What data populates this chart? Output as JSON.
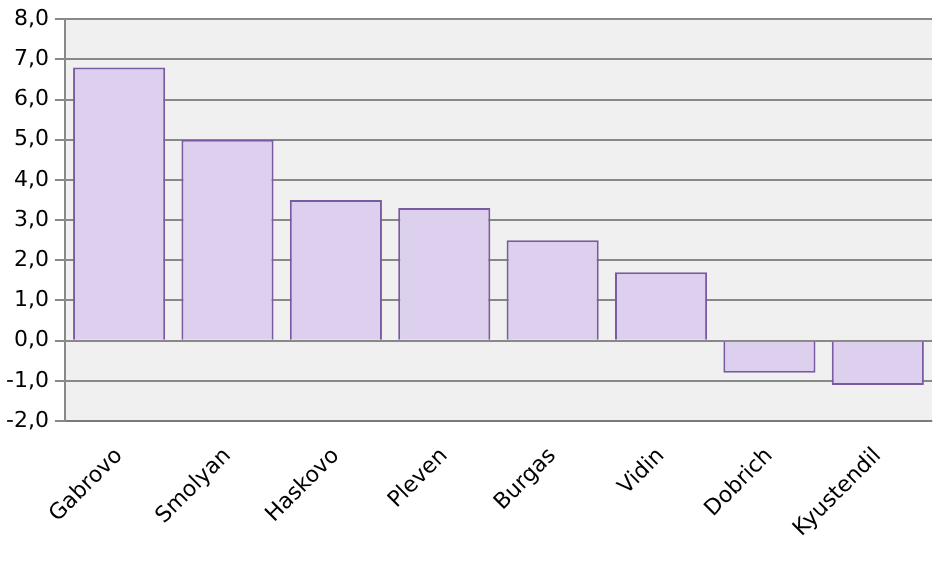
{
  "chart_data": {
    "type": "bar",
    "categories": [
      "Gabrovo",
      "Smolyan",
      "Haskovo",
      "Pleven",
      "Burgas",
      "Vidin",
      "Dobrich",
      "Kyustendil"
    ],
    "values": [
      6.8,
      5.0,
      3.5,
      3.3,
      2.5,
      1.7,
      -0.8,
      -1.1
    ],
    "color": "#dcd0ee",
    "ylim": [
      -2,
      8
    ],
    "yticks": [
      {
        "value": -2,
        "label": "-2,0"
      },
      {
        "value": -1,
        "label": "-1,0"
      },
      {
        "value": 0,
        "label": "0,0"
      },
      {
        "value": 1,
        "label": "1,0"
      },
      {
        "value": 2,
        "label": "2,0"
      },
      {
        "value": 3,
        "label": "3,0"
      },
      {
        "value": 4,
        "label": "4,0"
      },
      {
        "value": 5,
        "label": "5,0"
      },
      {
        "value": 6,
        "label": "6,0"
      },
      {
        "value": 7,
        "label": "7,0"
      },
      {
        "value": 8,
        "label": "8,0"
      }
    ],
    "grid": "y"
  }
}
